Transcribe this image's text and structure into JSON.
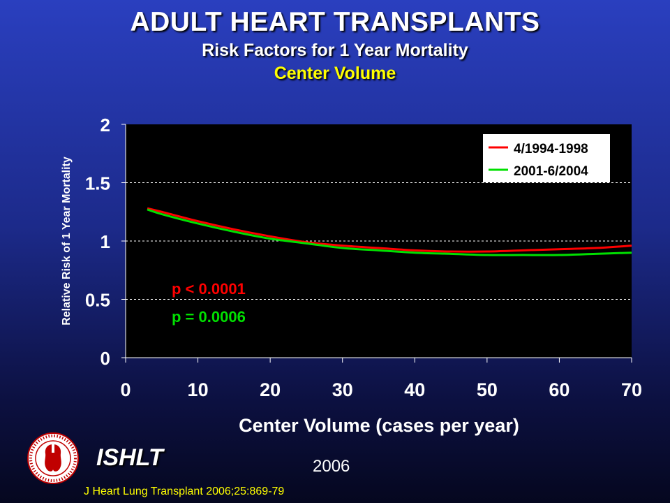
{
  "title": "ADULT HEART TRANSPLANTS",
  "subtitle": "Risk Factors for 1 Year Mortality",
  "subtitle2": "Center Volume",
  "footer": {
    "brand": "ISHLT",
    "year": "2006",
    "citation": "J Heart Lung Transplant 2006;25:869-79"
  },
  "logo": {
    "icon": "ishlt-seal-icon"
  },
  "colors": {
    "series1": "#ff0000",
    "series2": "#00e000",
    "title": "#ffffff",
    "subtitle2": "#ffff00",
    "plot_bg": "#000000"
  },
  "chart_data": {
    "type": "line",
    "title": "",
    "xlabel": "Center Volume (cases per year)",
    "ylabel": "Relative Risk of 1 Year Mortality",
    "xlim": [
      0,
      70
    ],
    "ylim": [
      0,
      2
    ],
    "x_ticks": [
      "0",
      "10",
      "20",
      "30",
      "40",
      "50",
      "60",
      "70"
    ],
    "y_ticks": [
      "0",
      "0.5",
      "1",
      "1.5",
      "2"
    ],
    "grid": "horizontal dashed",
    "legend": "top-right",
    "series": [
      {
        "name": "4/1994-1998",
        "x": [
          3,
          5,
          10,
          15,
          20,
          25,
          30,
          35,
          40,
          45,
          50,
          55,
          60,
          65,
          70
        ],
        "y": [
          1.28,
          1.25,
          1.17,
          1.1,
          1.04,
          0.99,
          0.96,
          0.94,
          0.92,
          0.91,
          0.91,
          0.92,
          0.93,
          0.94,
          0.96
        ]
      },
      {
        "name": "2001-6/2004",
        "x": [
          3,
          5,
          10,
          15,
          20,
          25,
          30,
          35,
          40,
          45,
          50,
          55,
          60,
          65,
          70
        ],
        "y": [
          1.27,
          1.23,
          1.15,
          1.08,
          1.02,
          0.98,
          0.94,
          0.92,
          0.9,
          0.89,
          0.88,
          0.88,
          0.88,
          0.89,
          0.9
        ]
      }
    ],
    "annotations": [
      {
        "text": "p < 0.0001",
        "series": 0
      },
      {
        "text": "p = 0.0006",
        "series": 1
      }
    ]
  }
}
